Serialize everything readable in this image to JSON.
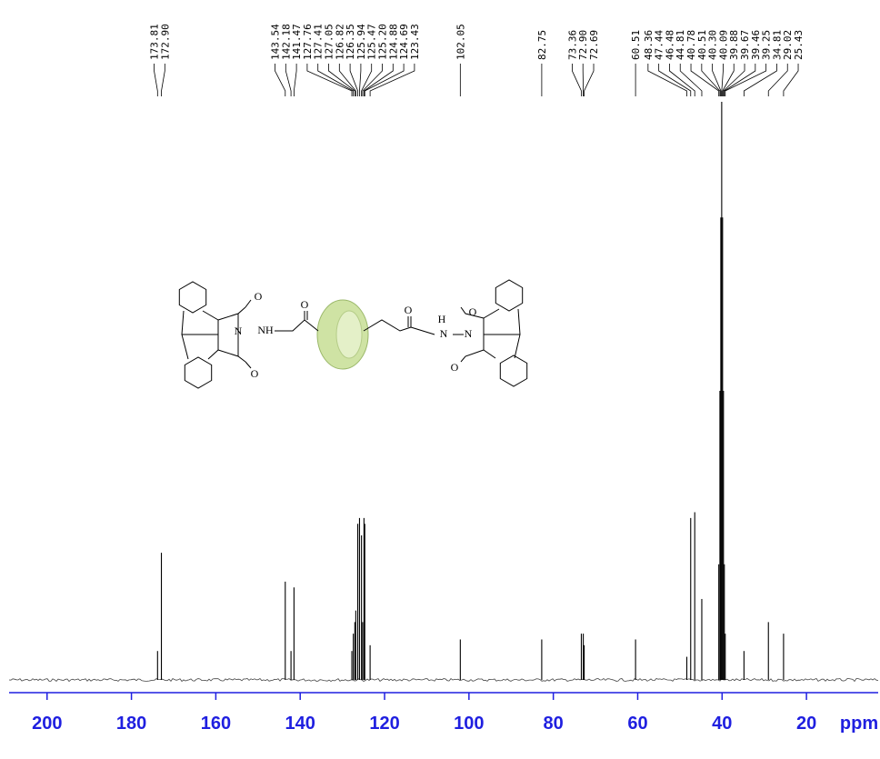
{
  "chart_data": {
    "type": "nmr",
    "x": [
      173.81,
      172.9,
      143.54,
      142.18,
      141.47,
      127.76,
      127.41,
      127.05,
      126.82,
      126.35,
      125.94,
      125.47,
      125.2,
      124.88,
      124.69,
      123.43,
      102.05,
      82.75,
      73.36,
      72.9,
      72.69,
      60.51,
      48.36,
      47.44,
      46.48,
      44.81,
      40.78,
      40.51,
      40.3,
      40.09,
      39.88,
      39.67,
      39.46,
      39.25,
      34.81,
      29.02,
      25.43
    ],
    "x_labels": [
      "173.81",
      "172.90",
      "143.54",
      "142.18",
      "141.47",
      "127.76",
      "127.41",
      "127.05",
      "126.82",
      "126.35",
      "125.94",
      "125.47",
      "125.20",
      "124.88",
      "124.69",
      "123.43",
      "102.05",
      "82.75",
      "73.36",
      "72.90",
      "72.69",
      "60.51",
      "48.36",
      "47.44",
      "46.48",
      "44.81",
      "40.78",
      "40.51",
      "40.30",
      "40.09",
      "39.88",
      "39.67",
      "39.46",
      "39.25",
      "34.81",
      "29.02",
      "25.43"
    ],
    "values": [
      5,
      22,
      17,
      5,
      16,
      5,
      8,
      10,
      12,
      27,
      28,
      25,
      10,
      28,
      27,
      6,
      7,
      7,
      8,
      8,
      6,
      7,
      4,
      28,
      29,
      14,
      20,
      50,
      80,
      100,
      80,
      50,
      20,
      8,
      5,
      10,
      8
    ],
    "xlim": [
      209,
      3
    ],
    "xticks": [
      200,
      180,
      160,
      140,
      120,
      100,
      80,
      60,
      40,
      20
    ],
    "xlabel": "ppm",
    "ylim": [
      0,
      100
    ],
    "color": "#000000",
    "axis_color": "#1f1fe0",
    "structure_labels": [
      "O",
      "N",
      "O",
      "NH",
      "O",
      "O",
      "H",
      "N",
      "N",
      "O",
      "O"
    ]
  }
}
